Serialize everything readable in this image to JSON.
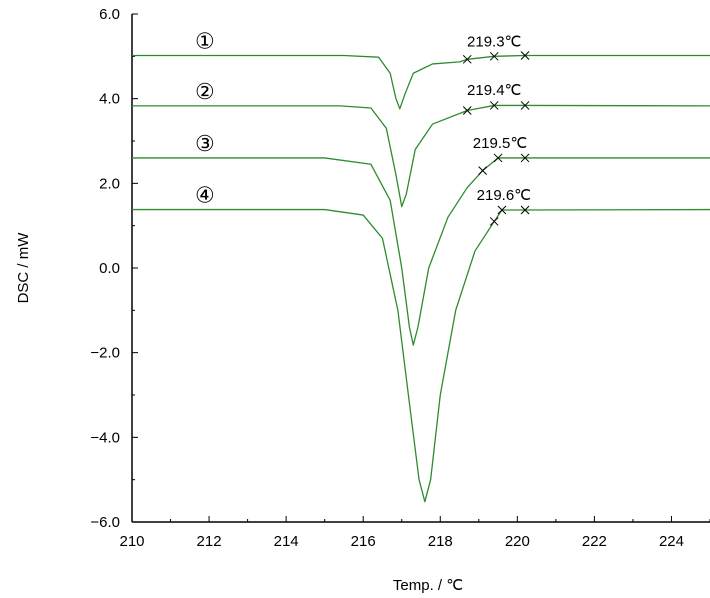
{
  "chart_data": {
    "type": "line",
    "xlabel": "Temp. / ℃",
    "ylabel": "DSC / mW",
    "xlim": [
      210,
      225
    ],
    "ylim": [
      -6.0,
      6.0
    ],
    "x_ticks": [
      "210",
      "212",
      "214",
      "216",
      "218",
      "220",
      "222",
      "224"
    ],
    "y_ticks": [
      "−6.0",
      "−4.0",
      "−2.0",
      "0.0",
      "2.0",
      "4.0",
      "6.0"
    ],
    "grid": false,
    "line_color": "#2e8b2e",
    "series": [
      {
        "name": "①",
        "baseline": 5.02,
        "points": [
          [
            210,
            5.02
          ],
          [
            215.5,
            5.02
          ],
          [
            216.4,
            4.98
          ],
          [
            216.7,
            4.6
          ],
          [
            216.85,
            4.0
          ],
          [
            216.95,
            3.76
          ],
          [
            217.08,
            4.1
          ],
          [
            217.3,
            4.6
          ],
          [
            217.8,
            4.82
          ],
          [
            218.5,
            4.87
          ],
          [
            218.7,
            4.93
          ],
          [
            219.4,
            5.0
          ],
          [
            220.2,
            5.02
          ],
          [
            225,
            5.02
          ]
        ],
        "markers": [
          [
            218.7,
            4.93
          ],
          [
            219.4,
            5.0
          ],
          [
            220.2,
            5.02
          ]
        ],
        "annotation": "219.3℃",
        "annotation_pos": [
          219.4,
          5.35
        ]
      },
      {
        "name": "②",
        "baseline": 3.83,
        "points": [
          [
            210,
            3.83
          ],
          [
            215.4,
            3.83
          ],
          [
            216.2,
            3.78
          ],
          [
            216.6,
            3.3
          ],
          [
            216.85,
            2.2
          ],
          [
            217.0,
            1.45
          ],
          [
            217.12,
            1.75
          ],
          [
            217.35,
            2.8
          ],
          [
            217.8,
            3.4
          ],
          [
            218.7,
            3.72
          ],
          [
            219.4,
            3.84
          ],
          [
            220.2,
            3.84
          ],
          [
            225,
            3.83
          ]
        ],
        "markers": [
          [
            218.7,
            3.72
          ],
          [
            219.4,
            3.84
          ],
          [
            220.2,
            3.84
          ]
        ],
        "annotation": "219.4℃",
        "annotation_pos": [
          219.4,
          4.2
        ]
      },
      {
        "name": "③",
        "baseline": 2.6,
        "points": [
          [
            210,
            2.6
          ],
          [
            215.0,
            2.6
          ],
          [
            216.2,
            2.45
          ],
          [
            216.7,
            1.6
          ],
          [
            217.0,
            0.0
          ],
          [
            217.2,
            -1.4
          ],
          [
            217.3,
            -1.82
          ],
          [
            217.42,
            -1.4
          ],
          [
            217.7,
            0.0
          ],
          [
            218.2,
            1.2
          ],
          [
            218.7,
            1.9
          ],
          [
            219.1,
            2.3
          ],
          [
            219.5,
            2.6
          ],
          [
            220.2,
            2.6
          ],
          [
            225,
            2.6
          ]
        ],
        "markers": [
          [
            219.1,
            2.3
          ],
          [
            219.5,
            2.6
          ],
          [
            220.2,
            2.6
          ]
        ],
        "annotation": "219.5℃",
        "annotation_pos": [
          219.55,
          2.95
        ]
      },
      {
        "name": "④",
        "baseline": 1.38,
        "points": [
          [
            210,
            1.38
          ],
          [
            215.0,
            1.38
          ],
          [
            216.0,
            1.25
          ],
          [
            216.5,
            0.7
          ],
          [
            216.9,
            -1.0
          ],
          [
            217.2,
            -3.2
          ],
          [
            217.45,
            -5.0
          ],
          [
            217.6,
            -5.52
          ],
          [
            217.75,
            -5.0
          ],
          [
            218.0,
            -3.0
          ],
          [
            218.4,
            -1.0
          ],
          [
            218.9,
            0.4
          ],
          [
            219.4,
            1.1
          ],
          [
            219.6,
            1.37
          ],
          [
            220.2,
            1.37
          ],
          [
            225,
            1.38
          ]
        ],
        "markers": [
          [
            219.4,
            1.1
          ],
          [
            219.6,
            1.37
          ],
          [
            220.2,
            1.37
          ]
        ],
        "annotation": "219.6℃",
        "annotation_pos": [
          219.65,
          1.73
        ]
      }
    ]
  }
}
